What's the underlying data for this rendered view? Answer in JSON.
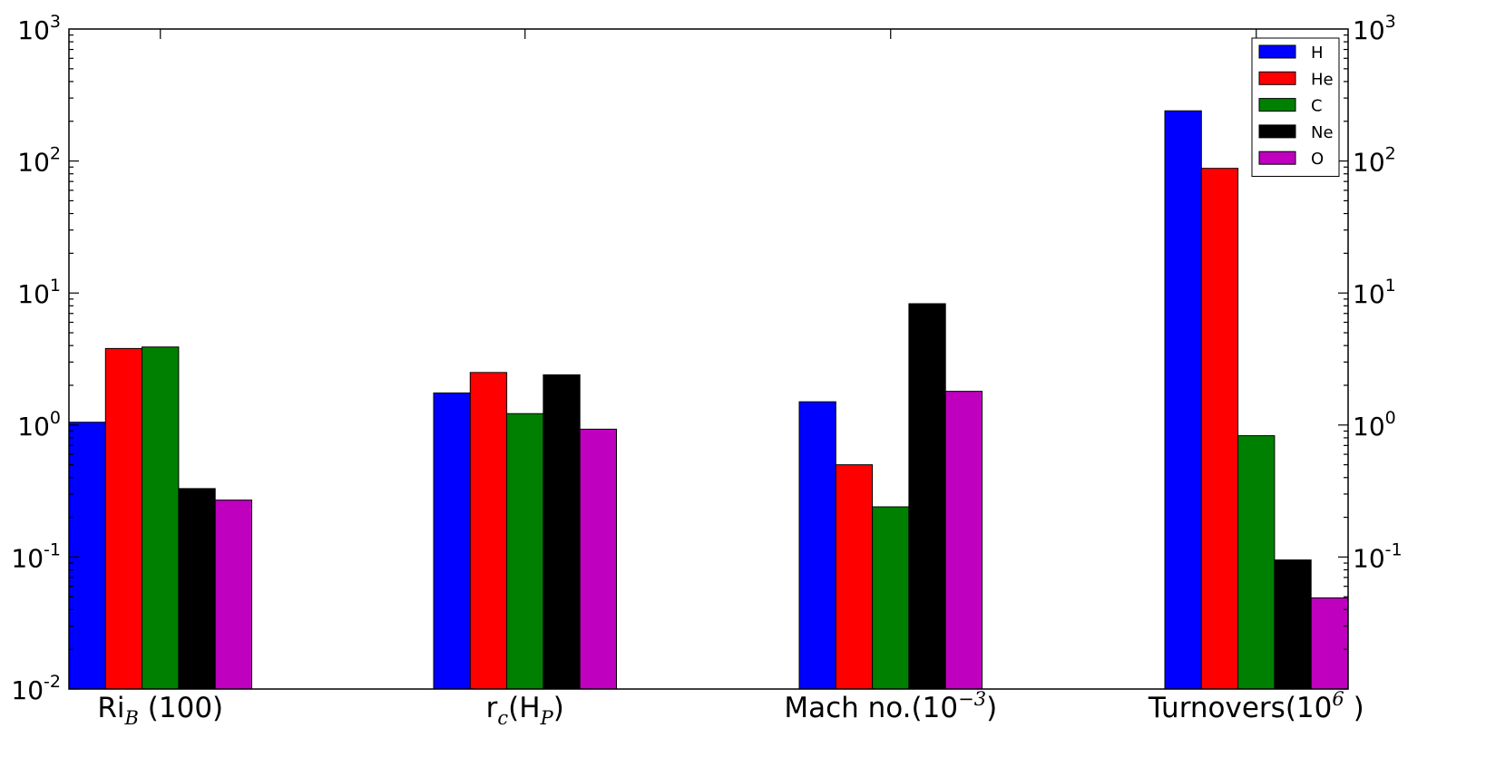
{
  "chart_data": {
    "type": "bar",
    "yscale": "log",
    "ylim": [
      0.01,
      1000
    ],
    "grid": false,
    "legend_position": "top-right",
    "categories": [
      "Ri_B (100)",
      "r_c(H_P)",
      "Mach no.(10^-3)",
      "Turnovers(10^6 )"
    ],
    "category_labels": [
      {
        "main": "Ri",
        "sub": "B",
        "rest": " (100)"
      },
      {
        "main": "r",
        "sub": "c",
        "rest": "(H",
        "sub2": "P",
        "end": ")"
      },
      {
        "main": "Mach no.(10",
        "sup": "−3",
        "end": ")"
      },
      {
        "main": "Turnovers(10",
        "sup": "6",
        "end": " )"
      }
    ],
    "series": [
      {
        "name": "H",
        "color": "#0000ff",
        "values": [
          1.05,
          1.75,
          1.5,
          240
        ]
      },
      {
        "name": "He",
        "color": "#ff0000",
        "values": [
          3.8,
          2.5,
          0.5,
          88
        ]
      },
      {
        "name": "C",
        "color": "#008000",
        "values": [
          3.9,
          1.22,
          0.24,
          0.83
        ]
      },
      {
        "name": "Ne",
        "color": "#000000",
        "values": [
          0.33,
          2.4,
          8.3,
          0.095
        ]
      },
      {
        "name": "O",
        "color": "#bf00bf",
        "values": [
          0.27,
          0.93,
          1.8,
          0.049
        ]
      }
    ],
    "yticks_left": [
      {
        "value": 0.01,
        "base": "10",
        "exp": "-2"
      },
      {
        "value": 0.1,
        "base": "10",
        "exp": "-1"
      },
      {
        "value": 1,
        "base": "10",
        "exp": "0"
      },
      {
        "value": 10,
        "base": "10",
        "exp": "1"
      },
      {
        "value": 100,
        "base": "10",
        "exp": "2"
      },
      {
        "value": 1000,
        "base": "10",
        "exp": "3"
      }
    ],
    "yticks_right": [
      {
        "value": 0.1,
        "base": "10",
        "exp": "-1"
      },
      {
        "value": 1,
        "base": "10",
        "exp": "0"
      },
      {
        "value": 10,
        "base": "10",
        "exp": "1"
      },
      {
        "value": 100,
        "base": "10",
        "exp": "2"
      },
      {
        "value": 1000,
        "base": "10",
        "exp": "3"
      }
    ]
  }
}
